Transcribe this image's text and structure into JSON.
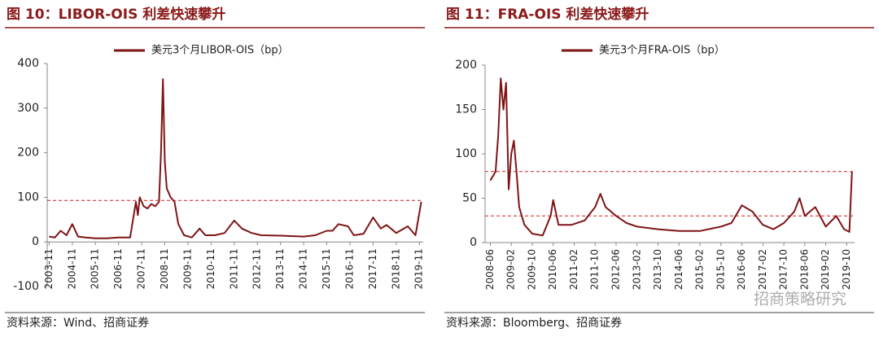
{
  "chart_data": [
    {
      "type": "line",
      "title": "图 10：LIBOR-OIS 利差快速攀升",
      "source": "资料来源：Wind、招商证券",
      "series": [
        {
          "name": "美元3个月LIBOR-OIS（bp）",
          "color": "#7f1416",
          "x": [
            "2003-11",
            "2004-02",
            "2004-05",
            "2004-08",
            "2004-11",
            "2005-02",
            "2005-06",
            "2005-11",
            "2006-05",
            "2006-11",
            "2007-05",
            "2007-08",
            "2007-09",
            "2007-10",
            "2007-12",
            "2008-02",
            "2008-04",
            "2008-06",
            "2008-08",
            "2008-09",
            "2008-10",
            "2008-11",
            "2008-12",
            "2009-02",
            "2009-04",
            "2009-06",
            "2009-09",
            "2010-01",
            "2010-05",
            "2010-08",
            "2011-01",
            "2011-06",
            "2011-11",
            "2012-03",
            "2012-08",
            "2013-01",
            "2013-11",
            "2014-11",
            "2015-05",
            "2015-11",
            "2016-02",
            "2016-05",
            "2016-10",
            "2017-01",
            "2017-06",
            "2017-11",
            "2018-03",
            "2018-06",
            "2018-11",
            "2019-05",
            "2019-09",
            "2019-12"
          ],
          "values": [
            12,
            10,
            25,
            15,
            40,
            12,
            10,
            8,
            8,
            10,
            10,
            90,
            60,
            100,
            80,
            75,
            85,
            80,
            90,
            200,
            365,
            180,
            120,
            100,
            90,
            40,
            15,
            10,
            30,
            15,
            15,
            20,
            48,
            30,
            20,
            15,
            14,
            12,
            15,
            25,
            25,
            40,
            35,
            15,
            18,
            55,
            30,
            38,
            20,
            35,
            15,
            90
          ]
        }
      ],
      "xlim": [
        "2003-10",
        "2020-01"
      ],
      "xticks": [
        "2003-11",
        "2004-11",
        "2005-11",
        "2006-11",
        "2007-11",
        "2008-11",
        "2009-11",
        "2010-11",
        "2011-11",
        "2012-11",
        "2013-11",
        "2014-11",
        "2015-11",
        "2016-11",
        "2017-11",
        "2018-11",
        "2019-11"
      ],
      "ylim": [
        -100,
        400
      ],
      "yticks": [
        -100,
        0,
        100,
        200,
        300,
        400
      ],
      "ref_lines": [
        93
      ]
    },
    {
      "type": "line",
      "title": "图 11：FRA-OIS 利差快速攀升",
      "source": "资料来源：Bloomberg、招商证券",
      "watermark": "招商策略研究",
      "series": [
        {
          "name": "美元3个月FRA-OIS（bp）",
          "color": "#7f1416",
          "x": [
            "2008-06",
            "2008-07",
            "2008-08",
            "2008-09",
            "2008-10",
            "2008-11",
            "2008-12",
            "2009-01",
            "2009-02",
            "2009-03",
            "2009-04",
            "2009-05",
            "2009-07",
            "2009-10",
            "2010-02",
            "2010-05",
            "2010-06",
            "2010-08",
            "2011-01",
            "2011-06",
            "2011-10",
            "2011-12",
            "2012-02",
            "2012-06",
            "2012-10",
            "2013-02",
            "2013-10",
            "2014-06",
            "2015-02",
            "2015-10",
            "2016-02",
            "2016-06",
            "2016-10",
            "2017-02",
            "2017-06",
            "2017-10",
            "2018-02",
            "2018-04",
            "2018-06",
            "2018-10",
            "2019-02",
            "2019-06",
            "2019-09",
            "2019-11",
            "2019-12"
          ],
          "values": [
            70,
            75,
            80,
            120,
            185,
            150,
            180,
            60,
            100,
            115,
            80,
            40,
            20,
            10,
            8,
            30,
            48,
            20,
            20,
            25,
            40,
            55,
            40,
            30,
            22,
            18,
            15,
            13,
            13,
            18,
            22,
            42,
            35,
            20,
            15,
            22,
            35,
            50,
            30,
            40,
            18,
            30,
            15,
            12,
            80
          ]
        }
      ],
      "xlim": [
        "2008-04",
        "2020-01"
      ],
      "xticks": [
        "2008-06",
        "2009-02",
        "2009-10",
        "2010-06",
        "2011-02",
        "2011-10",
        "2012-06",
        "2013-02",
        "2013-10",
        "2014-06",
        "2015-02",
        "2015-10",
        "2016-06",
        "2017-02",
        "2017-10",
        "2018-06",
        "2019-02",
        "2019-10"
      ],
      "ylim": [
        0,
        200
      ],
      "yticks": [
        0,
        50,
        100,
        150,
        200
      ],
      "ref_lines": [
        80,
        30
      ]
    }
  ]
}
